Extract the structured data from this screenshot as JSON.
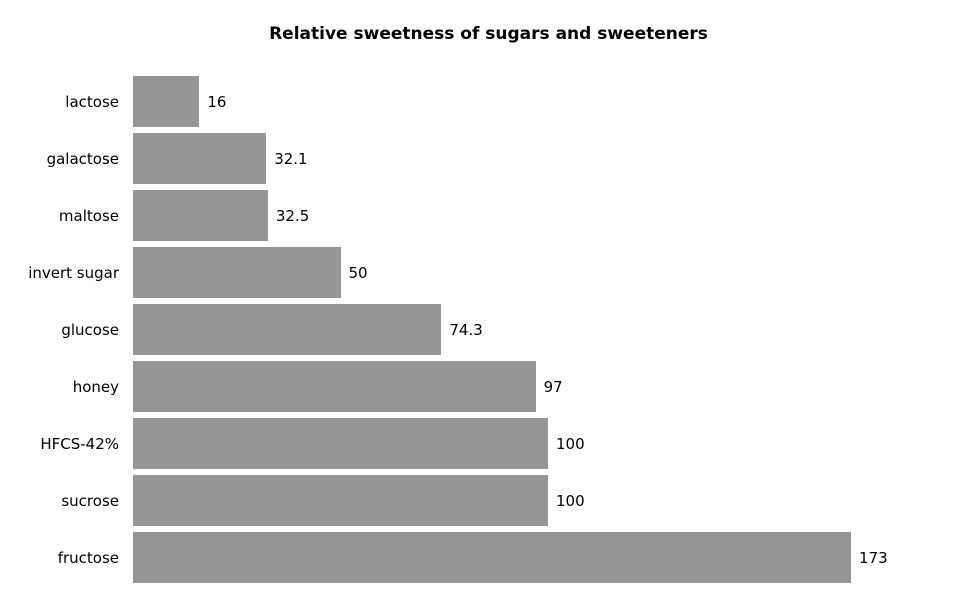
{
  "title": "Relative sweetness of sugars and sweeteners",
  "colors": {
    "bar": "#969696",
    "background": "#ffffff",
    "text": "#000000"
  },
  "chart_data": {
    "type": "bar",
    "orientation": "horizontal",
    "title": "Relative sweetness of sugars and sweeteners",
    "categories": [
      "lactose",
      "galactose",
      "maltose",
      "invert sugar",
      "glucose",
      "honey",
      "HFCS-42%",
      "sucrose",
      "fructose"
    ],
    "values": [
      16,
      32.1,
      32.5,
      50,
      74.3,
      97,
      100,
      100,
      173
    ],
    "value_labels": [
      "16",
      "32.1",
      "32.5",
      "50",
      "74.3",
      "97",
      "100",
      "100",
      "173"
    ],
    "xlabel": "",
    "ylabel": "",
    "xlim": [
      0,
      173
    ],
    "grid": false,
    "legend": false,
    "bar_labels_position": "end-of-bar"
  }
}
